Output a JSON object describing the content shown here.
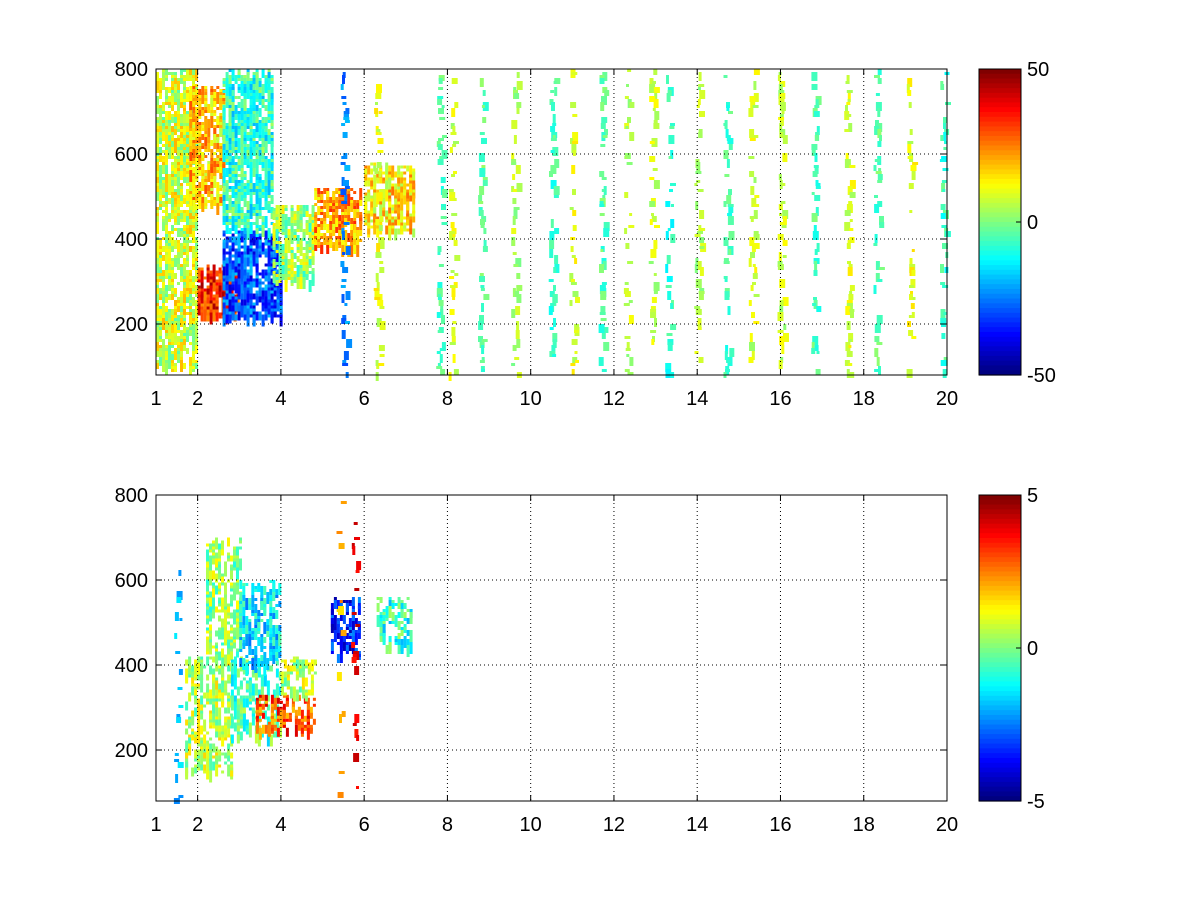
{
  "chart_data": [
    {
      "type": "heatmap",
      "title": "",
      "xlabel": "",
      "ylabel": "",
      "xlim": [
        1,
        20
      ],
      "ylim": [
        80,
        800
      ],
      "x_ticks": [
        1,
        2,
        4,
        6,
        8,
        10,
        12,
        14,
        16,
        18,
        20
      ],
      "y_ticks": [
        200,
        400,
        600,
        800
      ],
      "grid": true,
      "colormap": "jet",
      "colorbar": {
        "min": -50,
        "max": 50,
        "ticks": [
          50,
          0,
          -50
        ],
        "placement": "right"
      },
      "dense_regions": [
        {
          "x": [
            1.0,
            2.0
          ],
          "y": [
            100,
            800
          ],
          "value": 8
        },
        {
          "x": [
            2.0,
            3.0
          ],
          "y": [
            220,
            340
          ],
          "value": 35
        },
        {
          "x": [
            1.8,
            2.6
          ],
          "y": [
            480,
            760
          ],
          "value": 18
        },
        {
          "x": [
            2.6,
            4.0
          ],
          "y": [
            220,
            420
          ],
          "value": -30
        },
        {
          "x": [
            2.6,
            3.8
          ],
          "y": [
            420,
            800
          ],
          "value": -8
        },
        {
          "x": [
            3.8,
            4.8
          ],
          "y": [
            300,
            480
          ],
          "value": 3
        },
        {
          "x": [
            4.8,
            5.9
          ],
          "y": [
            380,
            520
          ],
          "value": 22
        },
        {
          "x": [
            6.0,
            7.2
          ],
          "y": [
            420,
            580
          ],
          "value": 15
        }
      ],
      "sparse_columns": [
        {
          "x": 5.5,
          "value": -25
        },
        {
          "x": 6.3,
          "value": 10
        },
        {
          "x": 7.8,
          "value": -5
        },
        {
          "x": 8.1,
          "value": 8
        },
        {
          "x": 8.8,
          "value": -3
        },
        {
          "x": 9.6,
          "value": 5
        },
        {
          "x": 10.5,
          "value": -6
        },
        {
          "x": 11.0,
          "value": 9
        },
        {
          "x": 11.7,
          "value": -4
        },
        {
          "x": 12.3,
          "value": 6
        },
        {
          "x": 12.9,
          "value": 7
        },
        {
          "x": 13.3,
          "value": -8
        },
        {
          "x": 14.0,
          "value": 5
        },
        {
          "x": 14.7,
          "value": -6
        },
        {
          "x": 15.3,
          "value": 8
        },
        {
          "x": 16.0,
          "value": 7
        },
        {
          "x": 16.8,
          "value": -5
        },
        {
          "x": 17.6,
          "value": 9
        },
        {
          "x": 18.3,
          "value": -4
        },
        {
          "x": 19.1,
          "value": 10
        },
        {
          "x": 19.9,
          "value": -7
        }
      ]
    },
    {
      "type": "heatmap",
      "title": "",
      "xlabel": "",
      "ylabel": "",
      "xlim": [
        1,
        20
      ],
      "ylim": [
        80,
        800
      ],
      "x_ticks": [
        1,
        2,
        4,
        6,
        8,
        10,
        12,
        14,
        16,
        18,
        20
      ],
      "y_ticks": [
        200,
        400,
        600,
        800
      ],
      "grid": true,
      "colormap": "jet",
      "colorbar": {
        "min": -5,
        "max": 5,
        "ticks": [
          5,
          0,
          -5
        ],
        "placement": "right"
      },
      "dense_regions": [
        {
          "x": [
            1.7,
            2.8
          ],
          "y": [
            150,
            420
          ],
          "value": 0.5
        },
        {
          "x": [
            2.2,
            3.0
          ],
          "y": [
            420,
            700
          ],
          "value": 0.2
        },
        {
          "x": [
            2.8,
            4.0
          ],
          "y": [
            230,
            420
          ],
          "value": -0.5
        },
        {
          "x": [
            3.0,
            4.0
          ],
          "y": [
            400,
            600
          ],
          "value": -1.5
        },
        {
          "x": [
            3.4,
            4.8
          ],
          "y": [
            250,
            330
          ],
          "value": 3
        },
        {
          "x": [
            4.0,
            4.8
          ],
          "y": [
            330,
            420
          ],
          "value": 0.5
        },
        {
          "x": [
            5.2,
            5.9
          ],
          "y": [
            420,
            560
          ],
          "value": -3.5
        },
        {
          "x": [
            6.3,
            7.1
          ],
          "y": [
            440,
            560
          ],
          "value": -0.8
        }
      ],
      "sparse_columns": [
        {
          "x": 5.4,
          "value": 2
        },
        {
          "x": 1.5,
          "value": -2
        },
        {
          "x": 5.75,
          "value": 4
        }
      ]
    }
  ]
}
